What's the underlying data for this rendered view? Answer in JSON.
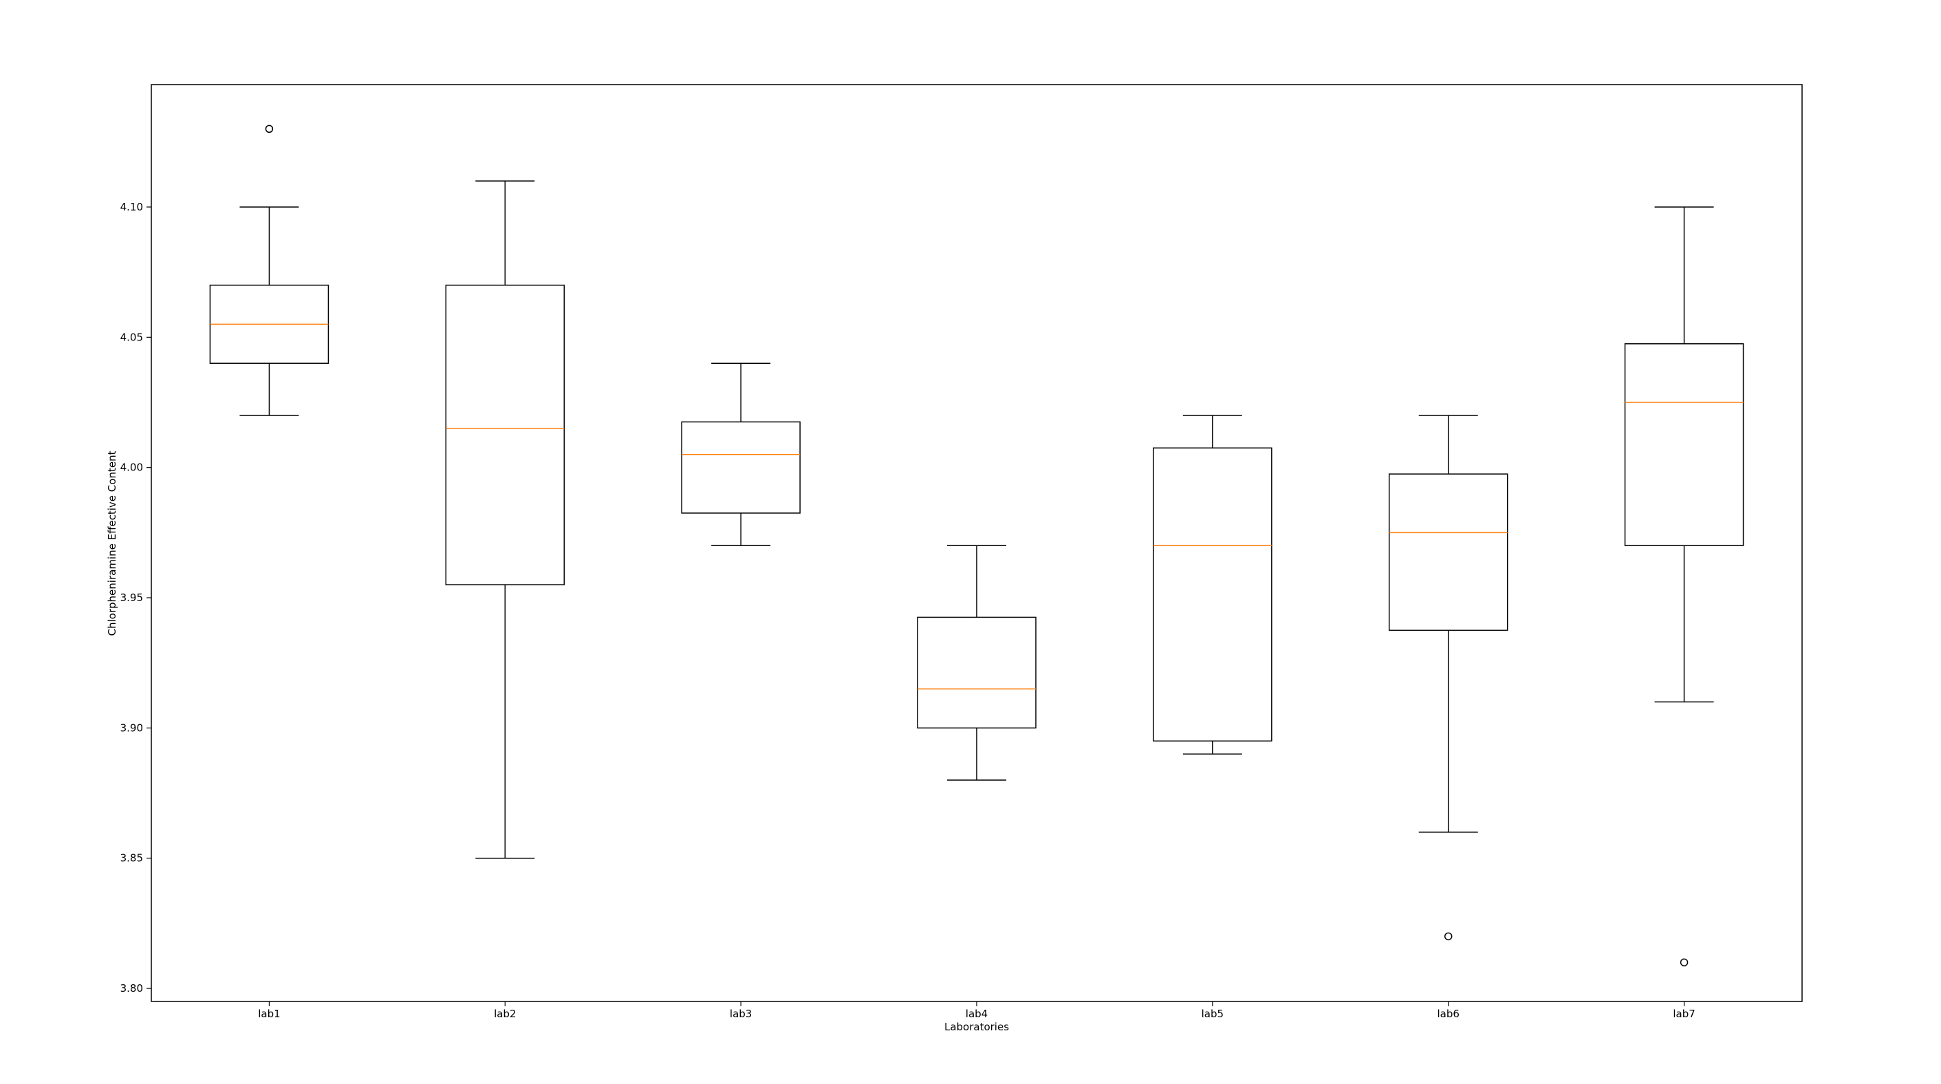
{
  "chart_data": {
    "type": "boxplot",
    "title": "",
    "xlabel": "Laboratories",
    "ylabel": "Chlorpheniramine Effective Content",
    "ylim": [
      3.795,
      4.147
    ],
    "yticks": [
      "3.80",
      "3.85",
      "3.90",
      "3.95",
      "4.00",
      "4.05",
      "4.10"
    ],
    "categories": [
      "lab1",
      "lab2",
      "lab3",
      "lab4",
      "lab5",
      "lab6",
      "lab7"
    ],
    "boxes": [
      {
        "label": "lab1",
        "whisker_low": 4.02,
        "q1": 4.04,
        "median": 4.055,
        "q3": 4.07,
        "whisker_high": 4.1,
        "outliers": [
          4.13
        ]
      },
      {
        "label": "lab2",
        "whisker_low": 3.85,
        "q1": 3.955,
        "median": 4.015,
        "q3": 4.07,
        "whisker_high": 4.11,
        "outliers": []
      },
      {
        "label": "lab3",
        "whisker_low": 3.97,
        "q1": 3.9825,
        "median": 4.005,
        "q3": 4.0175,
        "whisker_high": 4.04,
        "outliers": []
      },
      {
        "label": "lab4",
        "whisker_low": 3.88,
        "q1": 3.9,
        "median": 3.915,
        "q3": 3.9425,
        "whisker_high": 3.97,
        "outliers": []
      },
      {
        "label": "lab5",
        "whisker_low": 3.89,
        "q1": 3.895,
        "median": 3.97,
        "q3": 4.0075,
        "whisker_high": 4.02,
        "outliers": []
      },
      {
        "label": "lab6",
        "whisker_low": 3.86,
        "q1": 3.9375,
        "median": 3.975,
        "q3": 3.9975,
        "whisker_high": 4.02,
        "outliers": [
          3.82
        ]
      },
      {
        "label": "lab7",
        "whisker_low": 3.91,
        "q1": 3.97,
        "median": 4.025,
        "q3": 4.0475,
        "whisker_high": 4.1,
        "outliers": [
          3.81
        ]
      }
    ],
    "grid": false,
    "colors": {
      "box": "#000000",
      "median": "#ff7f0e",
      "whisker": "#000000",
      "outlier": "#000000"
    }
  }
}
